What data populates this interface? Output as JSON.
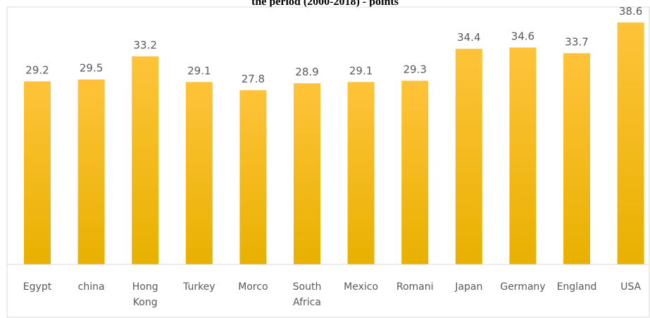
{
  "chart_data": {
    "type": "bar",
    "title": "the period (2000-2018) - points",
    "xlabel": "",
    "ylabel": "",
    "categories": [
      "Egypt",
      "china",
      "Hong Kong",
      "Turkey",
      "Morco",
      "South Africa",
      "Mexico",
      "Romani",
      "Japan",
      "Germany",
      "England",
      "USA"
    ],
    "category_lines": [
      [
        "Egypt"
      ],
      [
        "china"
      ],
      [
        "Hong",
        "Kong"
      ],
      [
        "Turkey"
      ],
      [
        "Morco"
      ],
      [
        "South",
        "Africa"
      ],
      [
        "Mexico"
      ],
      [
        "Romani"
      ],
      [
        "Japan"
      ],
      [
        "Germany"
      ],
      [
        "England"
      ],
      [
        "USA"
      ]
    ],
    "values": [
      29.2,
      29.5,
      33.2,
      29.1,
      27.8,
      28.9,
      29.1,
      29.3,
      34.4,
      34.6,
      33.7,
      38.6
    ],
    "data_labels": [
      "29.2",
      "29.5",
      "33.2",
      "29.1",
      "27.8",
      "28.9",
      "29.1",
      "29.3",
      "34.4",
      "34.6",
      "33.7",
      "38.6"
    ],
    "ylim": [
      0,
      40
    ],
    "grid": false,
    "legend": "none",
    "colors": {
      "bar_top": "#FFC33A",
      "bar_bottom": "#E8B100",
      "label": "#595959",
      "axis": "#D9D9D9",
      "border": "#D9D9D9"
    }
  }
}
